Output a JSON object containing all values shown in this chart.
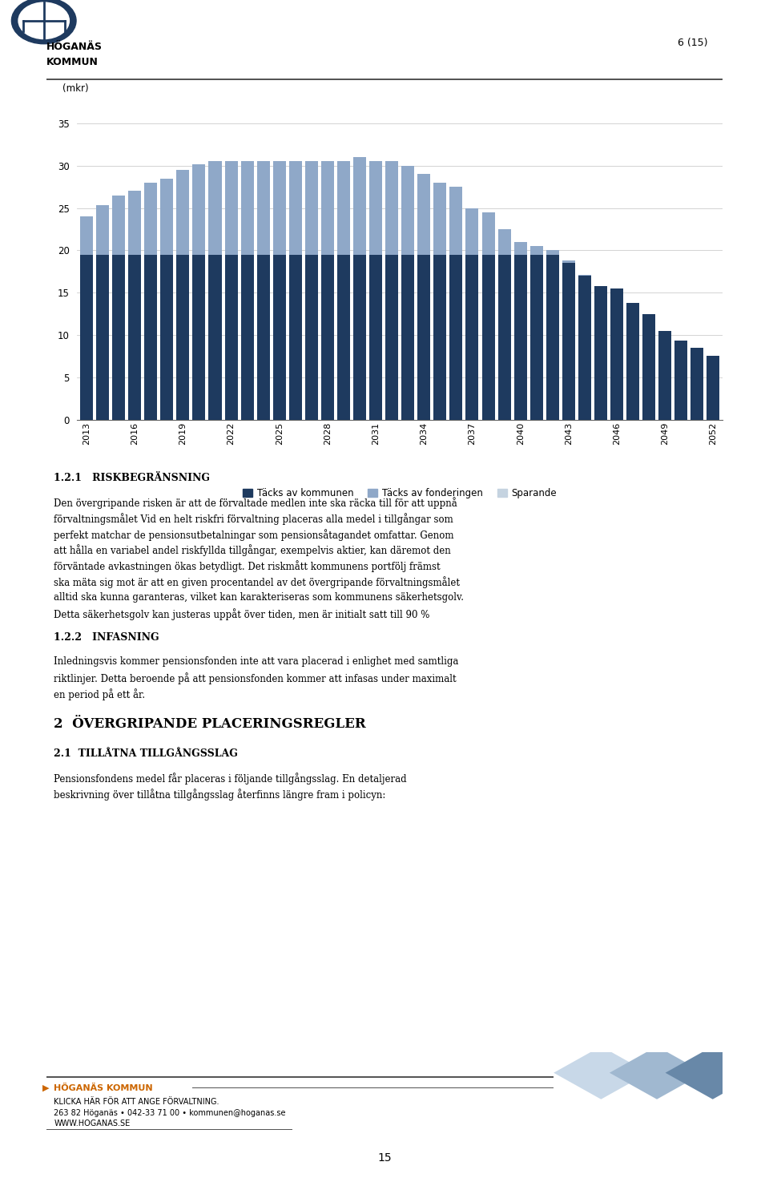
{
  "years": [
    2013,
    2016,
    2019,
    2022,
    2025,
    2028,
    2031,
    2034,
    2037,
    2040,
    2043,
    2046,
    2049,
    2052
  ],
  "all_years": [
    2013,
    2014,
    2015,
    2016,
    2017,
    2018,
    2019,
    2020,
    2021,
    2022,
    2023,
    2024,
    2025,
    2026,
    2027,
    2028,
    2029,
    2030,
    2031,
    2032,
    2033,
    2034,
    2035,
    2036,
    2037,
    2038,
    2039,
    2040,
    2041,
    2042,
    2043,
    2044,
    2045,
    2046,
    2047,
    2048,
    2049,
    2050,
    2051,
    2052
  ],
  "tacksav_kommunen": [
    19.5,
    19.5,
    19.5,
    19.5,
    19.5,
    19.5,
    19.5,
    19.5,
    19.5,
    19.5,
    19.5,
    19.5,
    19.5,
    19.5,
    19.5,
    19.5,
    19.5,
    19.5,
    19.5,
    19.5,
    19.5,
    19.5,
    19.5,
    19.5,
    19.5,
    19.5,
    19.5,
    19.5,
    19.5,
    19.5,
    18.5,
    17.0,
    15.8,
    15.5,
    13.8,
    12.5,
    10.5,
    9.3,
    8.5,
    7.5
  ],
  "tacksav_fonderingen": [
    4.5,
    5.8,
    7.0,
    7.5,
    8.5,
    9.0,
    10.0,
    10.7,
    11.0,
    11.0,
    11.0,
    11.0,
    11.0,
    11.0,
    11.0,
    11.0,
    11.0,
    11.5,
    11.0,
    11.0,
    10.5,
    9.5,
    8.5,
    8.0,
    5.5,
    5.0,
    3.0,
    1.5,
    1.0,
    0.5,
    0.3,
    0.1,
    0.0,
    0.0,
    0.0,
    0.0,
    0.0,
    0.0,
    0.0,
    0.0
  ],
  "sparande": [
    0,
    0,
    0,
    0,
    0,
    0,
    0,
    0,
    0,
    0,
    0,
    0,
    0,
    0,
    0,
    0,
    0,
    0,
    0,
    0,
    0,
    0,
    0,
    0,
    0,
    0,
    0,
    0,
    0,
    0,
    0,
    0,
    0,
    0,
    0,
    0,
    0,
    0,
    0,
    0
  ],
  "color_kommunen": "#1e3a5f",
  "color_fonderingen": "#8fa8c8",
  "color_sparande": "#c5d3e0",
  "ylabel": "(mkr)",
  "ylim": [
    0,
    37
  ],
  "yticks": [
    0,
    5,
    10,
    15,
    20,
    25,
    30,
    35
  ],
  "legend_labels": [
    "Täcks av kommunen",
    "Täcks av fonderingen",
    "Sparande"
  ],
  "figure_width": 9.6,
  "figure_height": 14.75
}
